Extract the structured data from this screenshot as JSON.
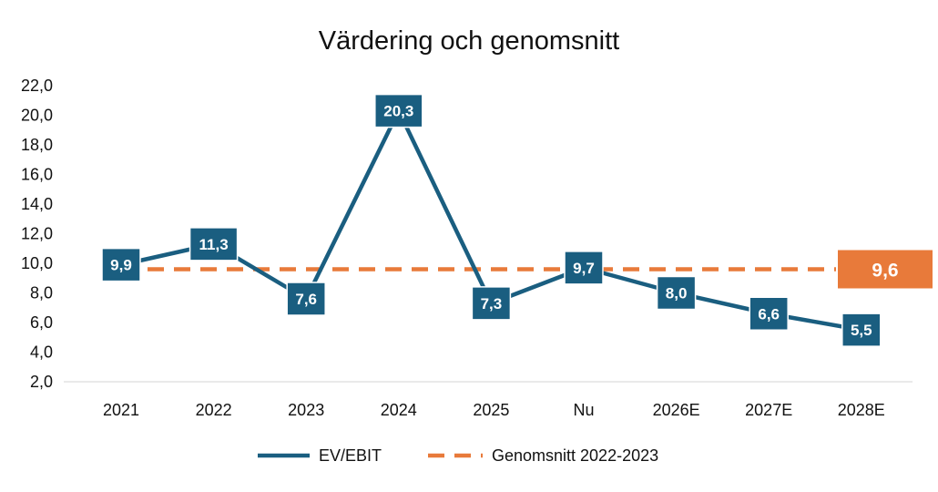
{
  "chart_data": {
    "type": "line",
    "title": "Värdering och genomsnitt",
    "categories": [
      "2021",
      "2022",
      "2023",
      "2024",
      "2025",
      "Nu",
      "2026E",
      "2027E",
      "2028E"
    ],
    "series": [
      {
        "name": "EV/EBIT",
        "values": [
          9.9,
          11.3,
          7.6,
          20.3,
          7.3,
          9.7,
          8.0,
          6.6,
          5.5
        ],
        "labels": [
          "9,9",
          "11,3",
          "7,6",
          "20,3",
          "7,3",
          "9,7",
          "8,0",
          "6,6",
          "5,5"
        ],
        "color": "#1a5e80"
      },
      {
        "name": "Genomsnitt 2022-2023",
        "value": 9.6,
        "label": "9,6",
        "color": "#e87a3a",
        "style": "dashed"
      }
    ],
    "ylim": [
      2.0,
      22.0
    ],
    "yticks": [
      "2,0",
      "4,0",
      "6,0",
      "8,0",
      "10,0",
      "12,0",
      "14,0",
      "16,0",
      "18,0",
      "20,0",
      "22,0"
    ],
    "grid": false,
    "legend": "bottom"
  }
}
